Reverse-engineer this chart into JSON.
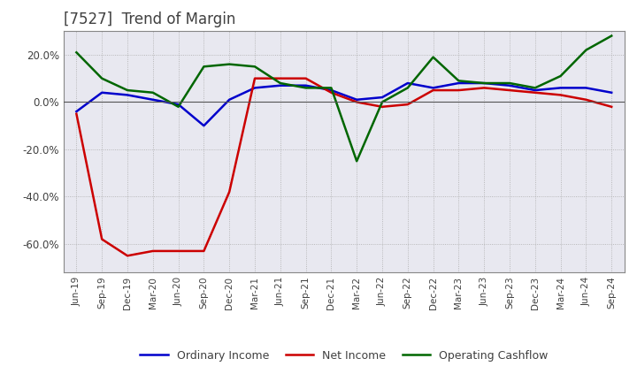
{
  "title": "[7527]  Trend of Margin",
  "title_color": "#404040",
  "background_color": "#ffffff",
  "plot_bg_color": "#e8e8f0",
  "grid_color": "#aaaaaa",
  "ylim": [
    -0.72,
    0.3
  ],
  "yticks": [
    -0.6,
    -0.4,
    -0.2,
    0.0,
    0.2
  ],
  "x_labels": [
    "Jun-19",
    "Sep-19",
    "Dec-19",
    "Mar-20",
    "Jun-20",
    "Sep-20",
    "Dec-20",
    "Mar-21",
    "Jun-21",
    "Sep-21",
    "Dec-21",
    "Mar-22",
    "Jun-22",
    "Sep-22",
    "Dec-22",
    "Mar-23",
    "Jun-23",
    "Sep-23",
    "Dec-23",
    "Mar-24",
    "Jun-24",
    "Sep-24"
  ],
  "ordinary_income": [
    -0.04,
    0.04,
    0.03,
    0.01,
    -0.01,
    -0.1,
    0.01,
    0.06,
    0.07,
    0.07,
    0.05,
    0.01,
    0.02,
    0.08,
    0.06,
    0.08,
    0.08,
    0.07,
    0.05,
    0.06,
    0.06,
    0.04
  ],
  "net_income": [
    -0.05,
    -0.58,
    -0.65,
    -0.63,
    -0.63,
    -0.63,
    -0.38,
    0.1,
    0.1,
    0.1,
    0.04,
    0.0,
    -0.02,
    -0.01,
    0.05,
    0.05,
    0.06,
    0.05,
    0.04,
    0.03,
    0.01,
    -0.02
  ],
  "operating_cashflow": [
    0.21,
    0.1,
    0.05,
    0.04,
    -0.02,
    0.15,
    0.16,
    0.15,
    0.08,
    0.06,
    0.06,
    -0.25,
    0.0,
    0.06,
    0.19,
    0.09,
    0.08,
    0.08,
    0.06,
    0.11,
    0.22,
    0.28
  ],
  "ordinary_income_color": "#0000cc",
  "net_income_color": "#cc0000",
  "operating_cashflow_color": "#006600",
  "line_width": 1.8,
  "legend_labels": [
    "Ordinary Income",
    "Net Income",
    "Operating Cashflow"
  ]
}
